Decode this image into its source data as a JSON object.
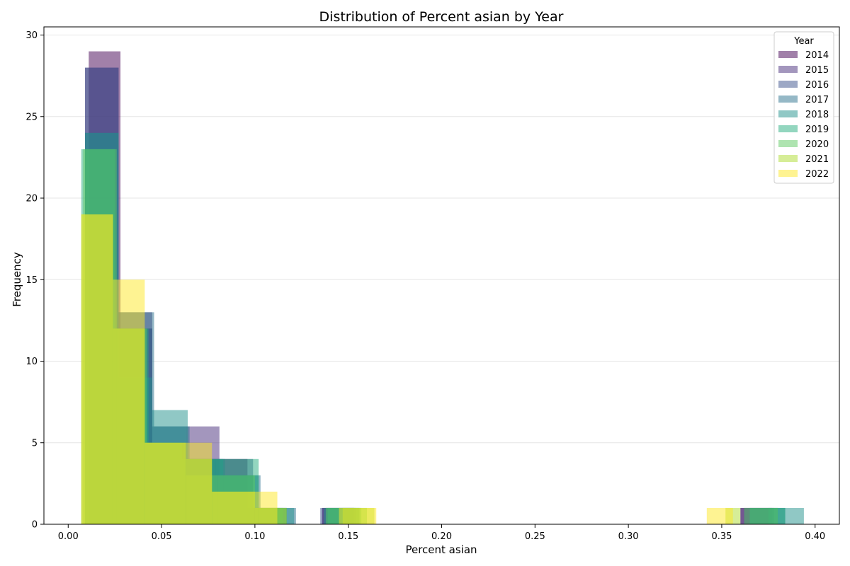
{
  "chart_data": {
    "type": "bar",
    "subtype": "overlaid-histogram",
    "title": "Distribution of Percent asian by Year",
    "xlabel": "Percent asian",
    "ylabel": "Frequency",
    "xlim": [
      -0.013,
      0.413
    ],
    "ylim": [
      0,
      30.5
    ],
    "xticks": [
      "0.00",
      "0.05",
      "0.10",
      "0.15",
      "0.20",
      "0.25",
      "0.30",
      "0.35",
      "0.40"
    ],
    "xtick_values": [
      0.0,
      0.05,
      0.1,
      0.15,
      0.2,
      0.25,
      0.3,
      0.35,
      0.4
    ],
    "yticks": [
      "0",
      "5",
      "10",
      "15",
      "20",
      "25",
      "30"
    ],
    "ytick_values": [
      0,
      5,
      10,
      15,
      20,
      25,
      30
    ],
    "grid": "horizontal",
    "legend": {
      "title": "Year",
      "placement": "top-right"
    },
    "bar_opacity": 0.5,
    "series": [
      {
        "name": "2014",
        "color": "#440154",
        "bins": [
          [
            0.011,
            0.028,
            29
          ],
          [
            0.028,
            0.045,
            12
          ],
          [
            0.045,
            0.062,
            5
          ],
          [
            0.062,
            0.079,
            4
          ],
          [
            0.079,
            0.096,
            4
          ],
          [
            0.096,
            0.113,
            1
          ],
          [
            0.136,
            0.153,
            1
          ],
          [
            0.36,
            0.377,
            1
          ]
        ]
      },
      {
        "name": "2015",
        "color": "#472d7b",
        "bins": [
          [
            0.009,
            0.027,
            28
          ],
          [
            0.027,
            0.045,
            13
          ],
          [
            0.045,
            0.063,
            5
          ],
          [
            0.063,
            0.081,
            6
          ],
          [
            0.081,
            0.099,
            3
          ],
          [
            0.099,
            0.117,
            1
          ],
          [
            0.136,
            0.154,
            1
          ],
          [
            0.36,
            0.378,
            1
          ]
        ]
      },
      {
        "name": "2016",
        "color": "#3b528b",
        "bins": [
          [
            0.009,
            0.027,
            28
          ],
          [
            0.027,
            0.045,
            12
          ],
          [
            0.045,
            0.063,
            6
          ],
          [
            0.063,
            0.081,
            4
          ],
          [
            0.081,
            0.099,
            4
          ],
          [
            0.099,
            0.117,
            1
          ],
          [
            0.135,
            0.153,
            1
          ],
          [
            0.362,
            0.38,
            1
          ]
        ]
      },
      {
        "name": "2017",
        "color": "#2c728e",
        "bins": [
          [
            0.009,
            0.027,
            24
          ],
          [
            0.027,
            0.046,
            13
          ],
          [
            0.046,
            0.065,
            6
          ],
          [
            0.065,
            0.084,
            4
          ],
          [
            0.084,
            0.103,
            3
          ],
          [
            0.103,
            0.122,
            1
          ],
          [
            0.138,
            0.156,
            1
          ],
          [
            0.365,
            0.384,
            1
          ]
        ]
      },
      {
        "name": "2018",
        "color": "#21918c",
        "bins": [
          [
            0.009,
            0.027,
            24
          ],
          [
            0.027,
            0.045,
            9
          ],
          [
            0.045,
            0.064,
            7
          ],
          [
            0.064,
            0.083,
            4
          ],
          [
            0.083,
            0.102,
            3
          ],
          [
            0.102,
            0.121,
            1
          ],
          [
            0.137,
            0.156,
            1
          ],
          [
            0.375,
            0.394,
            1
          ]
        ]
      },
      {
        "name": "2019",
        "color": "#28ae80",
        "bins": [
          [
            0.007,
            0.025,
            23
          ],
          [
            0.025,
            0.043,
            12
          ],
          [
            0.043,
            0.061,
            5
          ],
          [
            0.061,
            0.079,
            4
          ],
          [
            0.079,
            0.102,
            4
          ],
          [
            0.102,
            0.115,
            1
          ],
          [
            0.139,
            0.157,
            1
          ],
          [
            0.365,
            0.384,
            1
          ]
        ]
      },
      {
        "name": "2020",
        "color": "#5ec962",
        "bins": [
          [
            0.008,
            0.026,
            23
          ],
          [
            0.026,
            0.042,
            12
          ],
          [
            0.042,
            0.063,
            5
          ],
          [
            0.063,
            0.08,
            3
          ],
          [
            0.08,
            0.1,
            3
          ],
          [
            0.1,
            0.117,
            1
          ],
          [
            0.138,
            0.16,
            1
          ],
          [
            0.362,
            0.38,
            1
          ]
        ]
      },
      {
        "name": "2021",
        "color": "#addc30",
        "bins": [
          [
            0.007,
            0.024,
            19
          ],
          [
            0.024,
            0.041,
            12
          ],
          [
            0.041,
            0.063,
            5
          ],
          [
            0.063,
            0.077,
            4
          ],
          [
            0.077,
            0.1,
            2
          ],
          [
            0.1,
            0.117,
            1
          ],
          [
            0.147,
            0.164,
            1
          ],
          [
            0.352,
            0.36,
            1
          ]
        ]
      },
      {
        "name": "2022",
        "color": "#fde725",
        "bins": [
          [
            0.007,
            0.024,
            19
          ],
          [
            0.024,
            0.041,
            15
          ],
          [
            0.041,
            0.063,
            5
          ],
          [
            0.063,
            0.077,
            5
          ],
          [
            0.077,
            0.102,
            2
          ],
          [
            0.102,
            0.112,
            2
          ],
          [
            0.145,
            0.165,
            1
          ],
          [
            0.342,
            0.356,
            1
          ]
        ]
      }
    ]
  }
}
